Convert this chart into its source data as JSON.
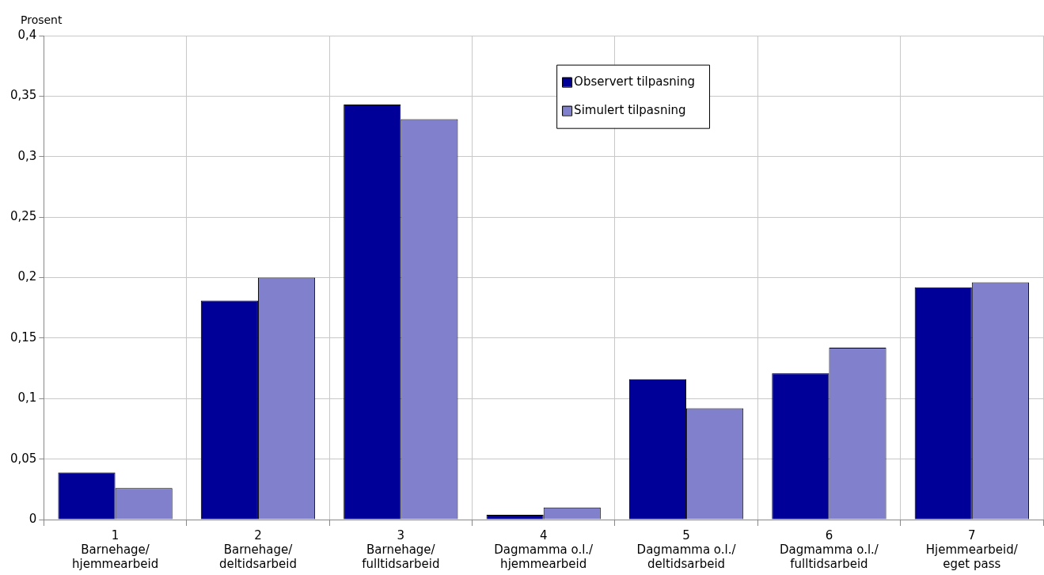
{
  "chart_data": {
    "type": "bar",
    "ylabel": "Prosent",
    "categories": [
      "1\nBarnehage/\nhjemmearbeid",
      "2\nBarnehage/\ndeltidsarbeid",
      "3\nBarnehage/\nfulltidsarbeid",
      "4\nDagmamma o.l./\nhjemmearbeid",
      "5\nDagmamma o.l./\ndeltidsarbeid",
      "6\nDagmamma o.l./\nfulltidsarbeid",
      "7\nHjemmearbeid/\neget pass"
    ],
    "series": [
      {
        "name": "Observert tilpasning",
        "color": "#000099",
        "values": [
          0.039,
          0.181,
          0.343,
          0.004,
          0.116,
          0.121,
          0.192
        ]
      },
      {
        "name": "Simulert tilpasning",
        "color": "#8080cc",
        "values": [
          0.026,
          0.2,
          0.331,
          0.01,
          0.092,
          0.142,
          0.196
        ]
      }
    ],
    "ylim": [
      0,
      0.4
    ],
    "yticks": [
      0,
      {
        "value": 0.05,
        "label": "0,05"
      },
      {
        "value": 0.1,
        "label": "0,1"
      },
      {
        "value": 0.15,
        "label": "0,15"
      },
      {
        "value": 0.2,
        "label": "0,2"
      },
      {
        "value": 0.25,
        "label": "0,25"
      },
      {
        "value": 0.3,
        "label": "0,3"
      },
      {
        "value": 0.35,
        "label": "0,35"
      },
      {
        "value": 0.4,
        "label": "0,4"
      }
    ],
    "grid": true,
    "legend": "top"
  }
}
